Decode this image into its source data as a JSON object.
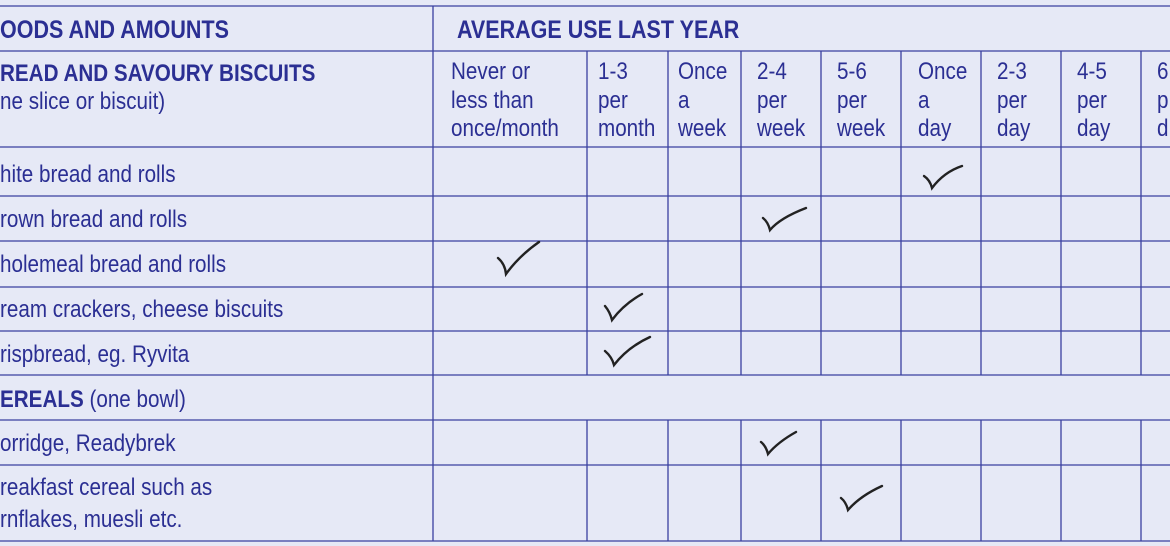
{
  "header": {
    "foods_title": "OODS AND AMOUNTS",
    "use_title": "AVERAGE USE LAST YEAR"
  },
  "section_bread": {
    "title": "READ AND SAVOURY BISCUITS",
    "subtitle": "ne slice or biscuit)"
  },
  "columns": [
    {
      "l1": "Never or",
      "l2": "less than",
      "l3": "once/month"
    },
    {
      "l1": "1-3",
      "l2": "per",
      "l3": "month"
    },
    {
      "l1": "Once",
      "l2": "a",
      "l3": "week"
    },
    {
      "l1": "2-4",
      "l2": "per",
      "l3": "week"
    },
    {
      "l1": "5-6",
      "l2": "per",
      "l3": "week"
    },
    {
      "l1": "Once",
      "l2": "a",
      "l3": "day"
    },
    {
      "l1": "2-3",
      "l2": "per",
      "l3": "day"
    },
    {
      "l1": "4-5",
      "l2": "per",
      "l3": "day"
    },
    {
      "l1": "6",
      "l2": "p",
      "l3": "d"
    }
  ],
  "rows": [
    {
      "label": "hite bread and rolls",
      "checked_col": 5
    },
    {
      "label": "rown bread and rolls",
      "checked_col": 3
    },
    {
      "label": "holemeal bread and rolls",
      "checked_col": 0
    },
    {
      "label": "ream crackers, cheese biscuits",
      "checked_col": 1
    },
    {
      "label": "rispbread, eg. Ryvita",
      "checked_col": 1
    }
  ],
  "section_cereals": {
    "title": "EREALS",
    "subtitle": "(one bowl)"
  },
  "cereal_rows": [
    {
      "label": "orridge, Readybrek",
      "checked_col": 3
    },
    {
      "label1": "reakfast cereal such as",
      "label2": "rnflakes, muesli etc.",
      "checked_col": 4
    }
  ],
  "colors": {
    "ink": "#2b2f93",
    "grid": "#3a40a0",
    "paper": "#e6e9f6",
    "pen": "#222222"
  }
}
